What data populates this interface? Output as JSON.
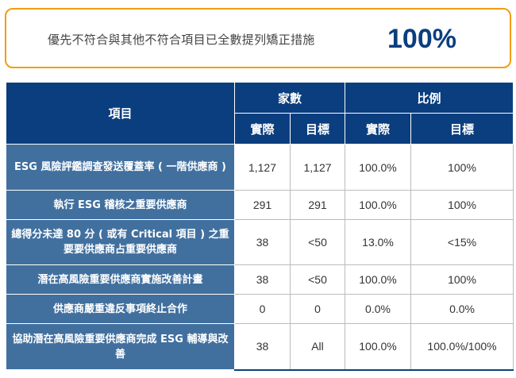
{
  "banner": {
    "text": "優先不符合與其他不符合項目已全數提列矯正措施",
    "value": "100%"
  },
  "table": {
    "header": {
      "item": "項目",
      "group_count": "家數",
      "group_ratio": "比例",
      "actual": "實際",
      "target": "目標"
    },
    "rows": [
      {
        "item": "ESG 風險評鑑調查發送覆蓋率 ( 一階供應商 )",
        "count_actual": "1,127",
        "count_target": "1,127",
        "ratio_actual": "100.0%",
        "ratio_target": "100%"
      },
      {
        "item": "執行 ESG 稽核之重要供應商",
        "count_actual": "291",
        "count_target": "291",
        "ratio_actual": "100.0%",
        "ratio_target": "100%"
      },
      {
        "item": "總得分未達 80 分 ( 或有 Critical 項目 ) 之重要要供應商占重要供應商",
        "count_actual": "38",
        "count_target": "<50",
        "ratio_actual": "13.0%",
        "ratio_target": "<15%"
      },
      {
        "item": "潛在高風險重要供應商實施改善計畫",
        "count_actual": "38",
        "count_target": "<50",
        "ratio_actual": "100.0%",
        "ratio_target": "100%"
      },
      {
        "item": "供應商嚴重違反事項終止合作",
        "count_actual": "0",
        "count_target": "0",
        "ratio_actual": "0.0%",
        "ratio_target": "0.0%"
      },
      {
        "item": "協助潛在高風險重要供應商完成 ESG 輔導與改善",
        "count_actual": "38",
        "count_target": "All",
        "ratio_actual": "100.0%",
        "ratio_target": "100.0%/100%"
      }
    ]
  },
  "colors": {
    "header": "#0b3e7e",
    "item_column": "#41709f",
    "banner_border": "#f39c12"
  }
}
